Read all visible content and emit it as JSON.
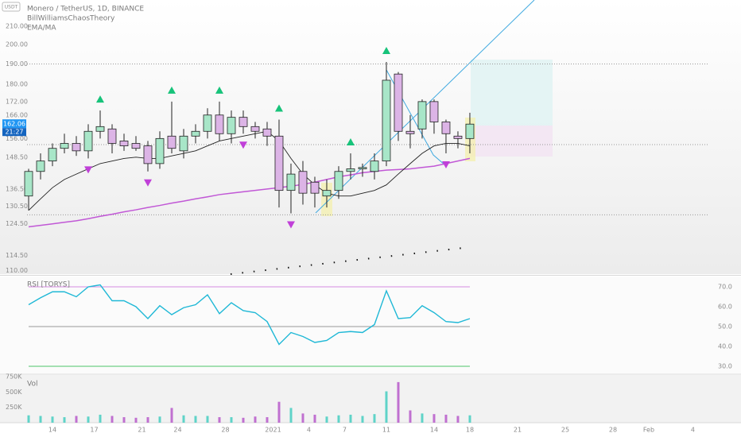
{
  "chart_data": [
    {
      "type": "candlestick",
      "title": "Monero / TetherUS, 1D, BINANCE",
      "indicators": [
        "BillWilliamsChaosTheory",
        "EMA/MA"
      ],
      "currency": "USDT",
      "log_scale": true,
      "ylim": [
        109,
        225
      ],
      "yticks": [
        {
          "value": 210,
          "label": "210.00"
        },
        {
          "value": 200,
          "label": "200.00"
        },
        {
          "value": 190,
          "label": "190.00"
        },
        {
          "value": 180,
          "label": "180.00"
        },
        {
          "value": 172,
          "label": "172.00"
        },
        {
          "value": 166,
          "label": "166.00"
        },
        {
          "value": 156,
          "label": "156.00"
        },
        {
          "value": 148.5,
          "label": "148.50"
        },
        {
          "value": 136.5,
          "label": "136.50"
        },
        {
          "value": 130.5,
          "label": "130.50"
        },
        {
          "value": 124.5,
          "label": "124.50"
        },
        {
          "value": 114.5,
          "label": "114.50"
        },
        {
          "value": 110,
          "label": "110.00"
        }
      ],
      "xlim": [
        -2.4,
        57.07
      ],
      "xticks": [
        {
          "value": 2,
          "label": "14"
        },
        {
          "value": 5.5,
          "label": "17"
        },
        {
          "value": 9.5,
          "label": "21"
        },
        {
          "value": 12.5,
          "label": "24"
        },
        {
          "value": 16.5,
          "label": "28"
        },
        {
          "value": 20.5,
          "label": "2021"
        },
        {
          "value": 23.5,
          "label": "4"
        },
        {
          "value": 26.5,
          "label": "7"
        },
        {
          "value": 30,
          "label": "11"
        },
        {
          "value": 34,
          "label": "14"
        },
        {
          "value": 37,
          "label": "18"
        },
        {
          "value": 41,
          "label": "21"
        },
        {
          "value": 45,
          "label": "25"
        },
        {
          "value": 49,
          "label": "28"
        },
        {
          "value": 52,
          "label": "Feb"
        },
        {
          "value": 55.7,
          "label": "4"
        }
      ],
      "open": [
        134,
        143,
        147,
        152,
        154,
        151,
        159,
        160,
        155,
        154,
        153,
        146,
        157,
        151,
        157,
        159,
        166,
        158,
        165,
        161,
        160,
        157,
        136,
        143,
        139,
        134,
        136,
        143,
        144,
        143,
        147,
        185,
        159,
        160,
        172,
        163,
        157,
        156
      ],
      "high": [
        144,
        150,
        154,
        158,
        157,
        162,
        168,
        162,
        158,
        157,
        155,
        159,
        172,
        160,
        162,
        169,
        172,
        168,
        168,
        163,
        163,
        164,
        146,
        147,
        141,
        140,
        145,
        150,
        146,
        150,
        191,
        186,
        166,
        173,
        173,
        164,
        159,
        167
      ],
      "low": [
        129,
        140,
        145,
        150,
        149,
        148,
        156,
        150,
        151,
        151,
        143,
        144,
        150,
        148,
        154,
        156,
        155,
        154,
        158,
        156,
        153,
        130,
        128,
        131,
        130,
        130,
        133,
        140,
        141,
        140,
        145,
        155,
        152,
        156,
        158,
        150,
        152,
        150
      ],
      "close": [
        143,
        147,
        152,
        154,
        151,
        159,
        161,
        154,
        153,
        152,
        146,
        156,
        152,
        157,
        159,
        166,
        158,
        165,
        161,
        159,
        157,
        136,
        142,
        135,
        135,
        136,
        143,
        144,
        144.5,
        147,
        182,
        159,
        158,
        172,
        163,
        158,
        156,
        162.06
      ],
      "up_color": "#a8e6c8",
      "down_color": "#dcb4e6",
      "series": [
        {
          "color": "#c158d6",
          "values": [
            123.5,
            124,
            124.5,
            125,
            125.5,
            126.2,
            127,
            127.7,
            128.5,
            129.2,
            130,
            130.7,
            131.5,
            132.2,
            133,
            133.7,
            134.5,
            135,
            135.5,
            136,
            136.5,
            137,
            137.5,
            138.2,
            139,
            140,
            141,
            141.7,
            142.5,
            143,
            143.5,
            143.7,
            144,
            144.5,
            145,
            146,
            147,
            148
          ]
        },
        {
          "color": "#222222",
          "values": [
            129,
            133,
            137,
            140,
            142,
            144,
            146,
            147,
            148,
            148.5,
            148,
            148,
            149,
            150,
            151,
            153,
            155,
            156,
            157,
            158,
            159,
            155,
            148,
            142,
            138,
            135,
            134,
            134,
            135,
            136,
            138,
            142,
            146,
            150,
            153,
            154,
            154,
            153
          ]
        }
      ],
      "fractals_up": [
        6,
        12,
        16,
        21,
        27,
        30
      ],
      "fractals_down": [
        5,
        10,
        18,
        22,
        35
      ],
      "levels": [
        190,
        153.5,
        127.5
      ],
      "last_price": {
        "value": 162.06,
        "label": "162.06"
      },
      "countdown": "21:27"
    },
    {
      "type": "line",
      "title": "RSI [TORYS]",
      "ylim": [
        26.4,
        75.2
      ],
      "yticks": [
        {
          "value": 70,
          "label": "70.0"
        },
        {
          "value": 60,
          "label": "60.0"
        },
        {
          "value": 50,
          "label": "50.0"
        },
        {
          "value": 40,
          "label": "40.0"
        },
        {
          "value": 30,
          "label": "30.0"
        }
      ],
      "levels": [
        70,
        50,
        30
      ],
      "level_colors": [
        "#d68be0",
        "#9a9a9a",
        "#4cc46a"
      ],
      "color": "#1fb8d6",
      "values": [
        61,
        64.5,
        67.5,
        67.5,
        65,
        70,
        71,
        63,
        63,
        60,
        54,
        60.5,
        56,
        59.5,
        61,
        66,
        56.5,
        62,
        58,
        57,
        52.5,
        41,
        47,
        45,
        42,
        43,
        47,
        47.5,
        47,
        51,
        68,
        54,
        54.5,
        60.5,
        57,
        52.5,
        52,
        54
      ]
    },
    {
      "type": "bar",
      "title": "Vol",
      "ylim": [
        0,
        775000
      ],
      "yticks": [
        {
          "value": 750000,
          "label": "750K"
        },
        {
          "value": 500000,
          "label": "500K"
        },
        {
          "value": 250000,
          "label": "250K"
        }
      ],
      "up_color": "#5fd3c8",
      "down_color": "#c070d0",
      "values": [
        120000,
        110000,
        100000,
        90000,
        110000,
        100000,
        130000,
        110000,
        90000,
        80000,
        90000,
        100000,
        240000,
        120000,
        110000,
        110000,
        90000,
        90000,
        80000,
        100000,
        90000,
        340000,
        240000,
        150000,
        130000,
        100000,
        120000,
        130000,
        110000,
        140000,
        510000,
        660000,
        200000,
        150000,
        140000,
        130000,
        110000,
        120000
      ]
    }
  ]
}
